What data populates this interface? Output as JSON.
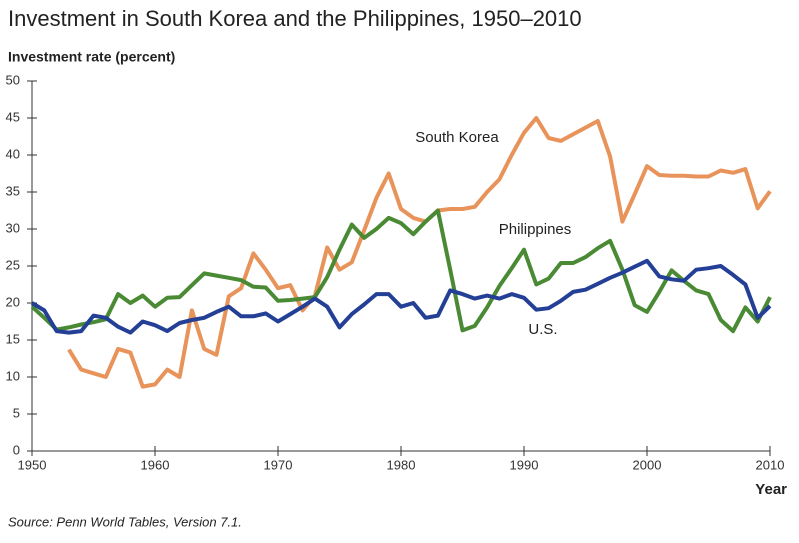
{
  "chart_data": {
    "type": "line",
    "title": "Investment in South Korea and the Philippines, 1950–2010",
    "y_label": "Investment rate (percent)",
    "x_label": "Year",
    "source": "Source: Penn World Tables, Version 7.1.",
    "x": [
      1950,
      1951,
      1952,
      1953,
      1954,
      1955,
      1956,
      1957,
      1958,
      1959,
      1960,
      1961,
      1962,
      1963,
      1964,
      1965,
      1966,
      1967,
      1968,
      1969,
      1970,
      1971,
      1972,
      1973,
      1974,
      1975,
      1976,
      1977,
      1978,
      1979,
      1980,
      1981,
      1982,
      1983,
      1984,
      1985,
      1986,
      1987,
      1988,
      1989,
      1990,
      1991,
      1992,
      1993,
      1994,
      1995,
      1996,
      1997,
      1998,
      1999,
      2000,
      2001,
      2002,
      2003,
      2004,
      2005,
      2006,
      2007,
      2008,
      2009,
      2010
    ],
    "series": [
      {
        "name": "South Korea",
        "color": "#e8935a",
        "values": [
          null,
          null,
          null,
          13.7,
          11,
          10.5,
          10,
          13.8,
          13.3,
          8.7,
          9,
          11,
          10,
          19,
          13.8,
          13,
          20.9,
          22,
          26.7,
          24.5,
          22,
          22.4,
          19,
          21,
          27.5,
          24.5,
          25.5,
          29.8,
          34.2,
          37.5,
          32.7,
          31.5,
          31,
          32.5,
          32.7,
          32.7,
          33,
          35,
          36.7,
          40,
          43,
          45,
          42.3,
          41.9,
          42.8,
          43.7,
          44.6,
          39.8,
          31,
          34.7,
          38.5,
          37.3,
          37.2,
          37.2,
          37.1,
          37.1,
          37.9,
          37.6,
          38.1,
          32.8,
          35.1
        ]
      },
      {
        "name": "Philippines",
        "color": "#4a8a34",
        "values": [
          19.5,
          18,
          16.4,
          16.7,
          17.1,
          17.4,
          17.8,
          21.2,
          20,
          21,
          19.5,
          20.7,
          20.8,
          22.4,
          24,
          23.7,
          23.4,
          23.1,
          22.2,
          22.1,
          20.3,
          20.4,
          20.6,
          20.8,
          23.5,
          27.2,
          30.6,
          28.8,
          30,
          31.5,
          30.8,
          29.3,
          31,
          32.5,
          24.5,
          16.3,
          16.9,
          19.4,
          22.3,
          24.7,
          27.2,
          22.5,
          23.3,
          25.4,
          25.4,
          26.2,
          27.4,
          28.4,
          24.5,
          19.7,
          18.8,
          21.5,
          24.4,
          23,
          21.7,
          21.2,
          17.7,
          16.2,
          19.4,
          17.5,
          20.8
        ]
      },
      {
        "name": "U.S.",
        "color": "#233f96",
        "values": [
          20,
          19,
          16.2,
          16,
          16.2,
          18.3,
          18,
          16.8,
          16,
          17.5,
          17,
          16.2,
          17.3,
          17.7,
          18,
          18.8,
          19.5,
          18.2,
          18.2,
          18.6,
          17.5,
          18.5,
          19.5,
          20.6,
          19.5,
          16.7,
          18.5,
          19.8,
          21.2,
          21.2,
          19.5,
          20,
          18,
          18.3,
          21.7,
          21.2,
          20.6,
          21,
          20.6,
          21.2,
          20.7,
          19.1,
          19.3,
          20.3,
          21.5,
          21.8,
          22.6,
          23.4,
          24.1,
          24.9,
          25.7,
          23.6,
          23.2,
          23,
          24.5,
          24.7,
          25,
          23.8,
          22.5,
          18,
          19.6
        ]
      }
    ],
    "xlim": [
      1950,
      2010
    ],
    "ylim": [
      0,
      50
    ],
    "xticks": [
      1950,
      1960,
      1970,
      1980,
      1990,
      2000,
      2010
    ],
    "yticks": [
      0,
      5,
      10,
      15,
      20,
      25,
      30,
      35,
      40,
      45,
      50
    ],
    "grid": false
  }
}
